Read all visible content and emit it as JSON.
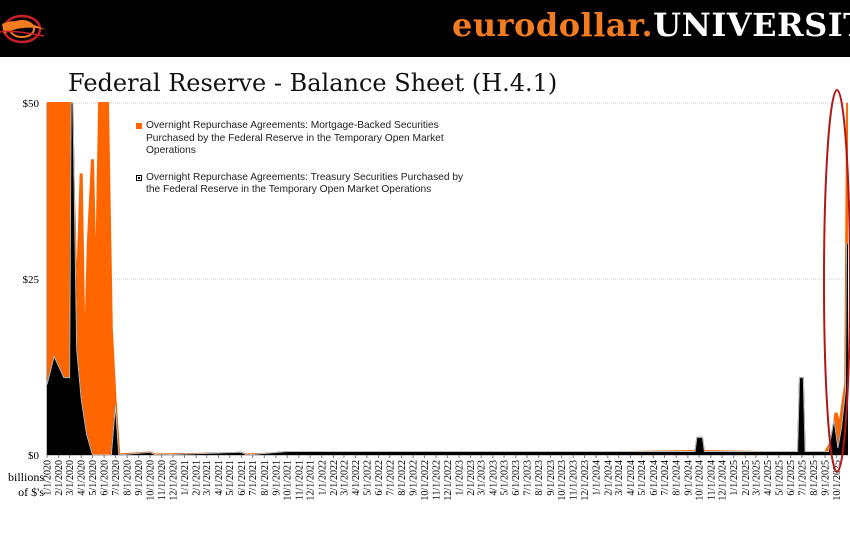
{
  "banner": {
    "brand_part1": "eurodollar.",
    "brand_part2": "UNIVERSIT",
    "logo_icon": "eurodollar-logo-icon",
    "accent_color": "#f47c20"
  },
  "chart_data": {
    "type": "area",
    "title": "Federal Reserve - Balance Sheet (H.4.1)",
    "units_label": "billions of $'s",
    "ylim": [
      0,
      50
    ],
    "yticks": [
      "$50",
      "$25",
      "$0"
    ],
    "ytick_values": [
      50,
      25,
      0
    ],
    "grid": true,
    "legend_position": "top-left",
    "x_tick_labels": [
      "1/1/2020",
      "2/1/2020",
      "3/1/2020",
      "4/1/2020",
      "5/1/2020",
      "6/1/2020",
      "7/1/2020",
      "8/1/2020",
      "9/1/2020",
      "10/1/2020",
      "11/1/2020",
      "12/1/2020",
      "1/1/2021",
      "2/1/2021",
      "3/1/2021",
      "4/1/2021",
      "5/1/2021",
      "6/1/2021",
      "7/1/2021",
      "8/1/2021",
      "9/1/2021",
      "10/1/2021",
      "11/1/2021",
      "12/1/2021",
      "1/1/2022",
      "2/1/2022",
      "3/1/2022",
      "4/1/2022",
      "5/1/2022",
      "6/1/2022",
      "7/1/2022",
      "8/1/2022",
      "9/1/2022",
      "10/1/2022",
      "11/1/2022",
      "12/1/2022",
      "1/1/2023",
      "2/1/2023",
      "3/1/2023",
      "4/1/2023",
      "5/1/2023",
      "6/1/2023",
      "7/1/2023",
      "8/1/2023",
      "9/1/2023",
      "10/1/2023",
      "11/1/2023",
      "12/1/2023",
      "1/1/2024",
      "2/1/2024",
      "3/1/2024",
      "4/1/2024",
      "5/1/2024",
      "6/1/2024",
      "7/1/2024",
      "8/1/2024",
      "9/1/2024",
      "10/1/2024",
      "11/1/2024",
      "12/1/2024",
      "1/1/2025",
      "2/1/2025",
      "3/1/2025",
      "4/1/2025",
      "5/1/2025",
      "6/1/2025",
      "7/1/2025",
      "8/1/2025",
      "9/1/2025",
      "10/1/2025"
    ],
    "series": [
      {
        "name": "Overnight Repurchase Agreements: Mortgage-Backed Securities Purchased by the Federal Reserve in the Temporary Open Market Operations",
        "color": "#ff6600",
        "points": [
          [
            "2020-01-01",
            50
          ],
          [
            "2020-02-15",
            50
          ],
          [
            "2020-03-05",
            50
          ],
          [
            "2020-03-20",
            20
          ],
          [
            "2020-04-01",
            40
          ],
          [
            "2020-04-10",
            10
          ],
          [
            "2020-04-20",
            30
          ],
          [
            "2020-05-01",
            42
          ],
          [
            "2020-05-10",
            20
          ],
          [
            "2020-05-20",
            50
          ],
          [
            "2020-06-10",
            50
          ],
          [
            "2020-06-20",
            18
          ],
          [
            "2020-06-30",
            8
          ],
          [
            "2020-07-10",
            0
          ],
          [
            "2020-10-01",
            0.3
          ],
          [
            "2020-10-15",
            0
          ],
          [
            "2021-06-01",
            0.2
          ],
          [
            "2021-06-15",
            0
          ],
          [
            "2021-10-01",
            0.2
          ],
          [
            "2021-11-15",
            0.2
          ],
          [
            "2021-12-01",
            0
          ],
          [
            "2022-01-01",
            0.2
          ],
          [
            "2022-02-01",
            0
          ],
          [
            "2022-04-01",
            0.2
          ],
          [
            "2023-01-01",
            0.3
          ],
          [
            "2024-01-01",
            0.3
          ],
          [
            "2024-10-01",
            0.5
          ],
          [
            "2025-06-01",
            0.3
          ],
          [
            "2025-09-01",
            0.3
          ],
          [
            "2025-09-20",
            2
          ],
          [
            "2025-09-30",
            6
          ],
          [
            "2025-10-10",
            4
          ],
          [
            "2025-10-20",
            8
          ],
          [
            "2025-10-26",
            10
          ],
          [
            "2025-10-29",
            35
          ],
          [
            "2025-10-31",
            50
          ]
        ]
      },
      {
        "name": "Overnight Repurchase Agreements: Treasury Securities Purchased by the Federal Reserve in the Temporary Open Market Operations",
        "color": "#000000",
        "points": [
          [
            "2020-01-01",
            10
          ],
          [
            "2020-01-20",
            14
          ],
          [
            "2020-02-15",
            11
          ],
          [
            "2020-03-01",
            11
          ],
          [
            "2020-03-05",
            50
          ],
          [
            "2020-03-10",
            50
          ],
          [
            "2020-03-20",
            15
          ],
          [
            "2020-04-01",
            8
          ],
          [
            "2020-04-15",
            3
          ],
          [
            "2020-05-01",
            0
          ],
          [
            "2020-06-20",
            0
          ],
          [
            "2020-07-01",
            7
          ],
          [
            "2020-07-10",
            0
          ],
          [
            "2020-10-01",
            0.4
          ],
          [
            "2020-10-15",
            0
          ],
          [
            "2021-06-01",
            0.4
          ],
          [
            "2021-06-15",
            0
          ],
          [
            "2021-10-01",
            0.5
          ],
          [
            "2022-01-01",
            0.5
          ],
          [
            "2022-03-01",
            0.5
          ],
          [
            "2023-01-01",
            0.5
          ],
          [
            "2024-01-01",
            0.5
          ],
          [
            "2024-09-20",
            0.5
          ],
          [
            "2024-09-25",
            2.5
          ],
          [
            "2024-10-10",
            2.5
          ],
          [
            "2024-10-15",
            0.5
          ],
          [
            "2025-06-20",
            0.5
          ],
          [
            "2025-06-25",
            11
          ],
          [
            "2025-07-05",
            11
          ],
          [
            "2025-07-10",
            0.5
          ],
          [
            "2025-09-10",
            0.5
          ],
          [
            "2025-09-15",
            2
          ],
          [
            "2025-09-25",
            5
          ],
          [
            "2025-10-05",
            1
          ],
          [
            "2025-10-15",
            4
          ],
          [
            "2025-10-25",
            9
          ],
          [
            "2025-10-28",
            30
          ],
          [
            "2025-10-31",
            30
          ]
        ]
      }
    ],
    "annotation": "red ellipse highlighting the late-2025 spike"
  }
}
